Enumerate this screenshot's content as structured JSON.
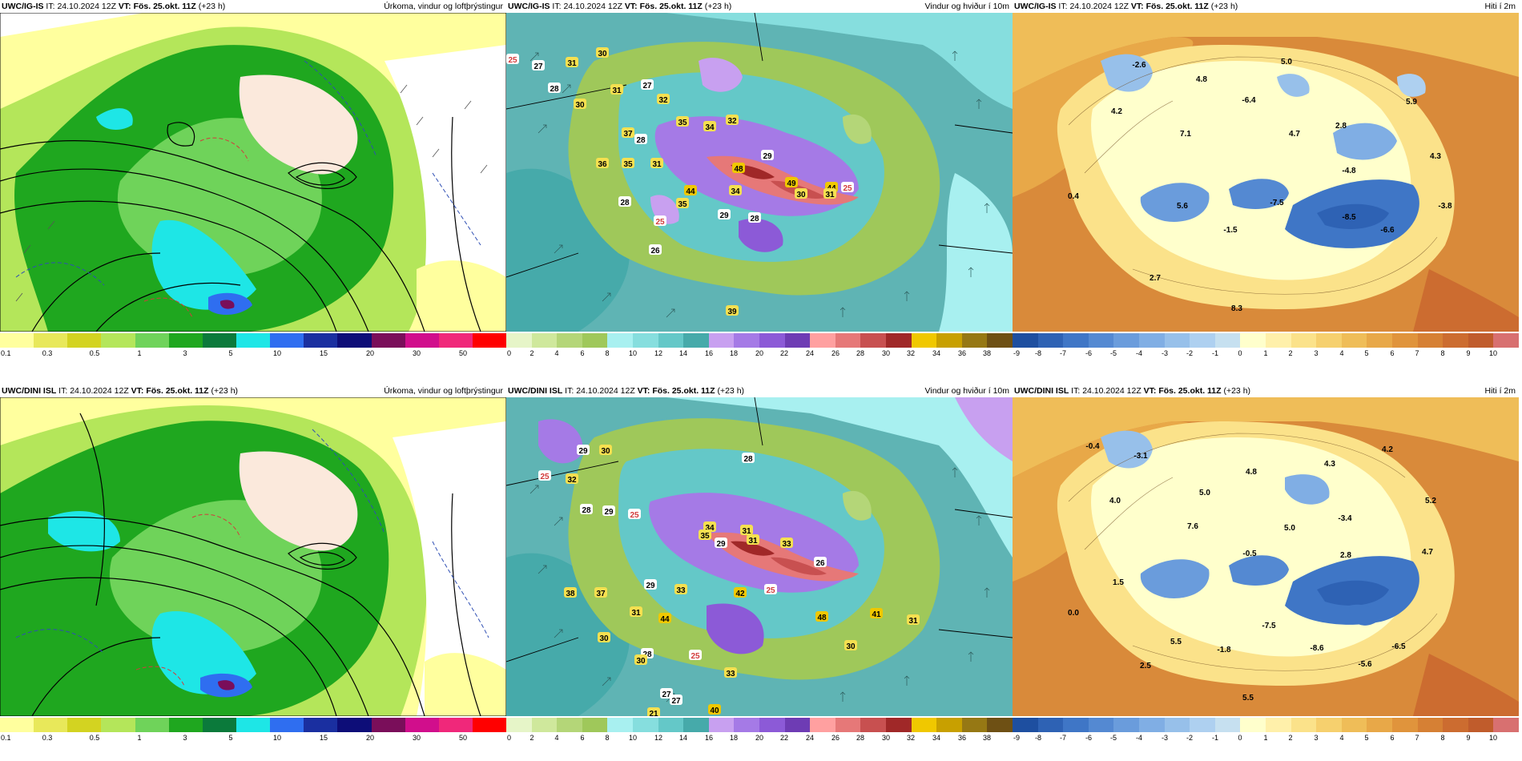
{
  "rows": [
    {
      "model": "UWC/IG-IS",
      "it_label": "IT:",
      "it": "24.10.2024 12Z",
      "vt_label": "VT:",
      "vt": "Fös. 25.okt. 11Z",
      "lead": "(+23 h)",
      "temp_labels": [
        "-2.6",
        "4.8",
        "5.0",
        "4.2",
        "7.1",
        "-6.4",
        "4.7",
        "2.8",
        "5.9",
        "4.3",
        "-4.8",
        "0.4",
        "5.6",
        "-7.5",
        "-8.5",
        "-6.6",
        "-3.8",
        "-1.5",
        "2.7",
        "8.3"
      ],
      "wind_labels": [
        "25",
        "27",
        "31",
        "30",
        "28",
        "30",
        "31",
        "27",
        "32",
        "37",
        "35",
        "28",
        "34",
        "32",
        "36",
        "35",
        "31",
        "29",
        "48",
        "44",
        "34",
        "49",
        "44",
        "30",
        "31",
        "25",
        "28",
        "35",
        "29",
        "28",
        "25",
        "26",
        "39"
      ]
    },
    {
      "model": "UWC/DINI ISL",
      "it_label": "IT:",
      "it": "24.10.2024 12Z",
      "vt_label": "VT:",
      "vt": "Fös. 25.okt. 11Z",
      "lead": "(+23 h)",
      "temp_labels": [
        "-0.4",
        "-3.1",
        "4.8",
        "4.3",
        "4.2",
        "5.0",
        "4.0",
        "7.6",
        "-3.4",
        "5.0",
        "5.2",
        "-0.5",
        "2.8",
        "4.7",
        "1.5",
        "0.0",
        "5.5",
        "-7.5",
        "-1.8",
        "-8.6",
        "-6.5",
        "2.5",
        "-5.6",
        "5.5"
      ],
      "wind_labels": [
        "29",
        "30",
        "25",
        "32",
        "28",
        "29",
        "25",
        "28",
        "34",
        "31",
        "35",
        "29",
        "31",
        "33",
        "26",
        "38",
        "37",
        "29",
        "33",
        "42",
        "25",
        "31",
        "44",
        "48",
        "41",
        "31",
        "30",
        "30",
        "28",
        "25",
        "30",
        "27",
        "33",
        "27",
        "40",
        "21"
      ]
    }
  ],
  "panel_titles": {
    "precip": "Úrkoma, vindur og loftþrýstingur",
    "wind": "Vindur og hviður í 10m",
    "temp": "Hiti í 2m"
  },
  "precip_scale": {
    "ticks": [
      "0.1",
      "0.3",
      "0.5",
      "1",
      "3",
      "5",
      "10",
      "15",
      "20",
      "30",
      "50"
    ],
    "colors": [
      "#ffff9e",
      "#e8e85a",
      "#d3d321",
      "#b4e65a",
      "#6fd35a",
      "#1fa71f",
      "#0b7a3b",
      "#1ee6e6",
      "#2f6ef0",
      "#1a2fa0",
      "#0d0d78",
      "#7a0e5a",
      "#d10e8c",
      "#f0287a",
      "#ff0000"
    ]
  },
  "wind_scale": {
    "ticks": [
      "0",
      "2",
      "4",
      "6",
      "8",
      "10",
      "12",
      "14",
      "16",
      "18",
      "20",
      "22",
      "24",
      "26",
      "28",
      "30",
      "32",
      "34",
      "36",
      "38"
    ],
    "colors": [
      "#e6f5c8",
      "#cfe89c",
      "#b4d678",
      "#9fc85a",
      "#a8f0f0",
      "#86dede",
      "#64c8c8",
      "#46aaaa",
      "#c8a0f0",
      "#a57ae6",
      "#8c5ad7",
      "#6e3cb4",
      "#ffa0a0",
      "#e67878",
      "#c85050",
      "#a02828",
      "#f0c800",
      "#c8a000",
      "#967814",
      "#6e5014"
    ]
  },
  "temp_scale": {
    "ticks": [
      "-9",
      "-8",
      "-7",
      "-6",
      "-5",
      "-4",
      "-3",
      "-2",
      "-1",
      "0",
      "1",
      "2",
      "3",
      "4",
      "5",
      "6",
      "7",
      "8",
      "9",
      "10"
    ],
    "colors": [
      "#1e4fa0",
      "#2e62b4",
      "#3f76c6",
      "#5489d2",
      "#6a9cdc",
      "#80aee4",
      "#97c0ea",
      "#aed0f0",
      "#c6e0f0",
      "#ffffcc",
      "#fff0aa",
      "#fbe28a",
      "#f6d06e",
      "#efbd58",
      "#e8a848",
      "#e0943c",
      "#d68034",
      "#cc6c30",
      "#c05c2c",
      "#d87070"
    ]
  },
  "colors": {
    "precip_sea": "#ffffff",
    "wind_sea": "#5fb4b4",
    "temp_sea": "#d98a3a",
    "isobar": "#000000"
  }
}
